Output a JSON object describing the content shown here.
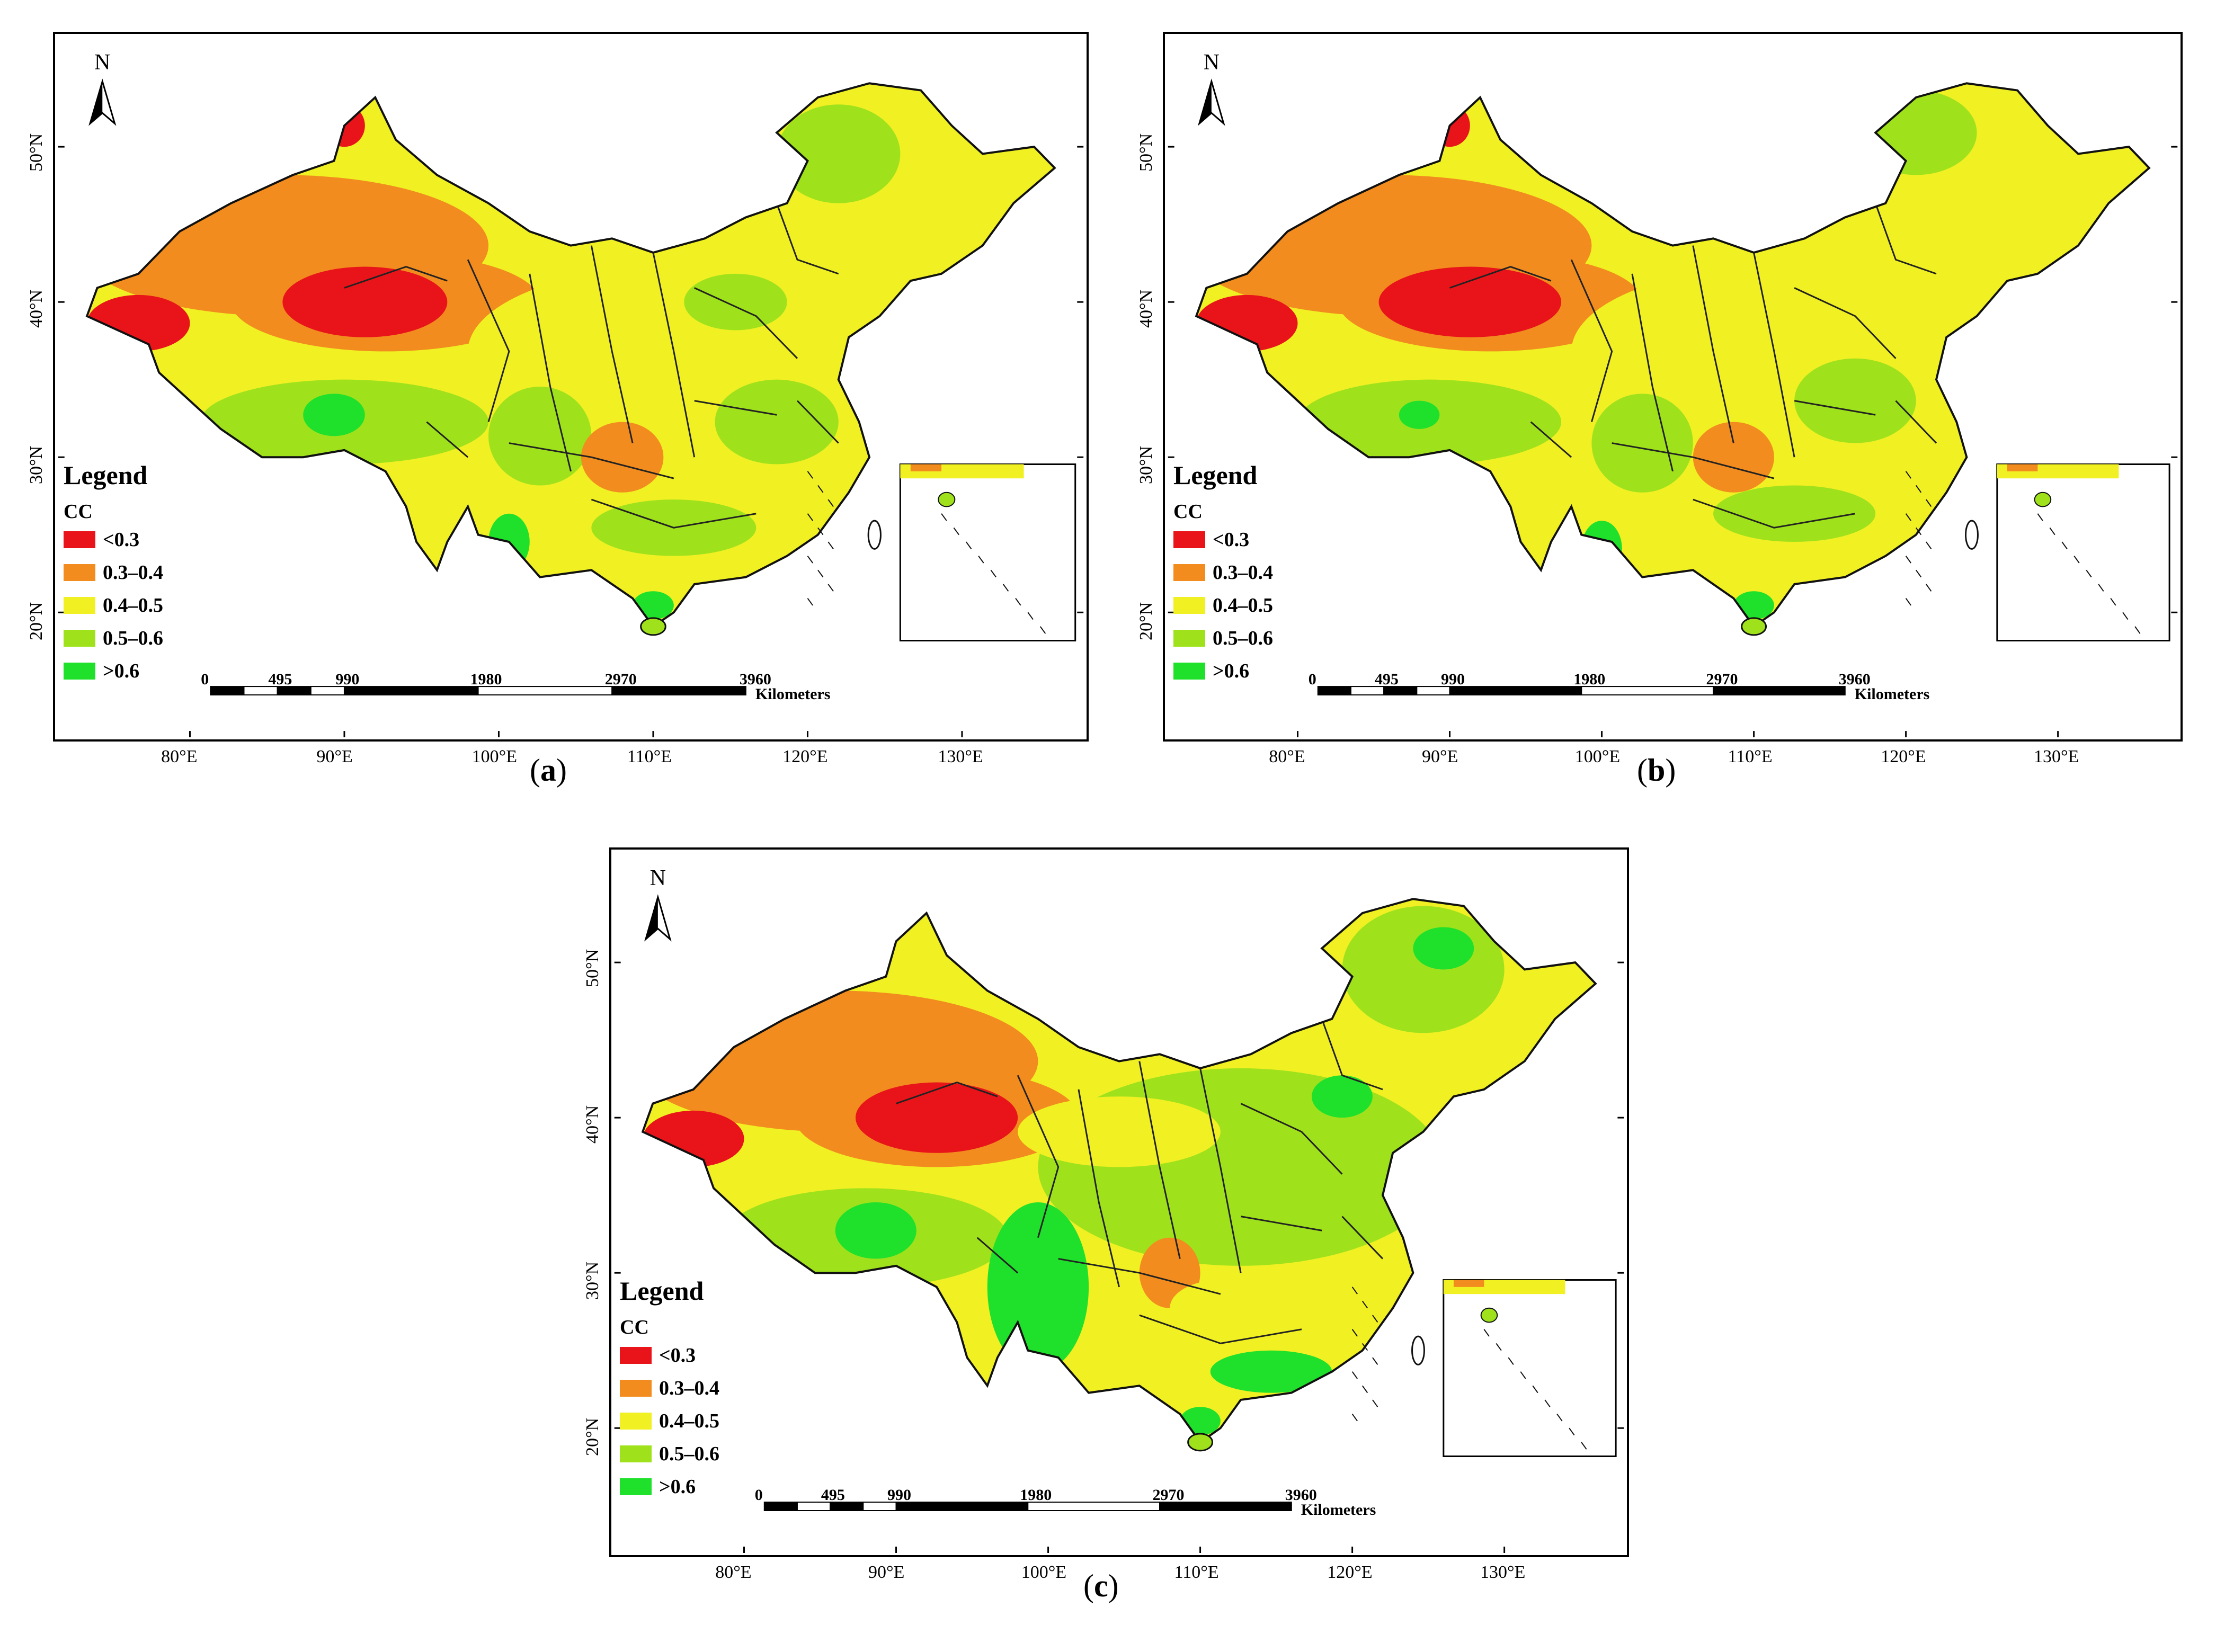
{
  "legend": {
    "title": "Legend",
    "subtitle": "CC",
    "classes": [
      {
        "label": "<0.3",
        "color": "#e8141a"
      },
      {
        "label": "0.3–0.4",
        "color": "#f28c1e"
      },
      {
        "label": "0.4–0.5",
        "color": "#f0f023"
      },
      {
        "label": "0.5–0.6",
        "color": "#9fe21c"
      },
      {
        "label": ">0.6",
        "color": "#1fe02b"
      }
    ]
  },
  "north_label": "N",
  "longitude_ticks": [
    "80°E",
    "90°E",
    "100°E",
    "110°E",
    "120°E",
    "130°E"
  ],
  "latitude_ticks": [
    "50°N",
    "40°N",
    "30°N",
    "20°N"
  ],
  "scale_bar": {
    "labels": [
      "0",
      "495",
      "990",
      "1980",
      "2970",
      "3960"
    ],
    "unit": "Kilometers"
  },
  "panels": [
    {
      "caption": "a"
    },
    {
      "caption": "b"
    },
    {
      "caption": "c"
    }
  ]
}
